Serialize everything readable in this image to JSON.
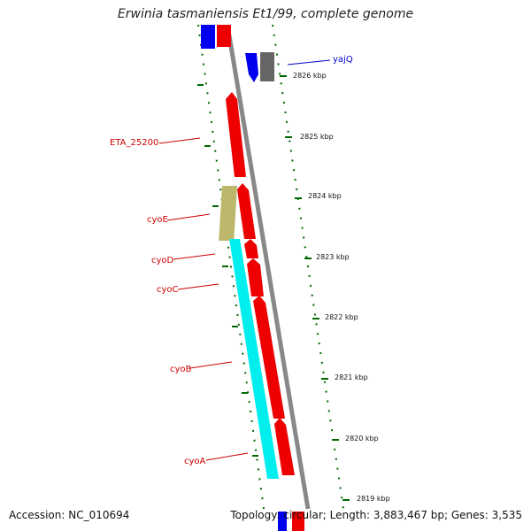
{
  "title": "Erwinia tasmaniensis Et1/99, complete genome",
  "footer": {
    "accession": "Accession: NC_010694",
    "stats": "Topology: circular; Length: 3,883,467 bp; Genes: 3,535"
  },
  "scale_labels": [
    "2826 kbp",
    "2825 kbp",
    "2824 kbp",
    "2823 kbp",
    "2822 kbp",
    "2821 kbp",
    "2820 kbp",
    "2819 kbp"
  ],
  "gene_labels": {
    "yajQ": "yajQ",
    "ETA_25200": "ETA_25200",
    "cyoE": "cyoE",
    "cyoD": "cyoD",
    "cyoC": "cyoC",
    "cyoB": "cyoB",
    "cyoA": "cyoA"
  },
  "colors": {
    "backbone": "#888888",
    "red_genes": "#ee0000",
    "blue_genes": "#0000ee",
    "gray_gene": "#666666",
    "cyan_gene": "#00eeee",
    "khaki_gene": "#bdb76b",
    "ticks": "#006600",
    "labels_red": "#cc0000",
    "labels_blue": "#0000cc"
  }
}
